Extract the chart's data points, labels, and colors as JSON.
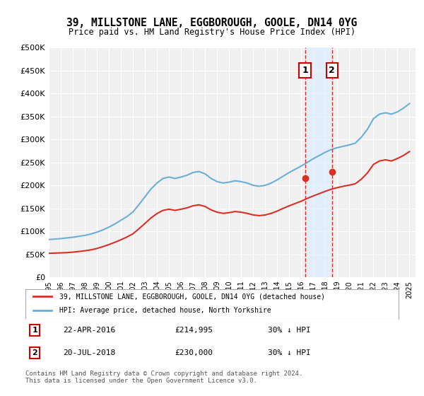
{
  "title": "39, MILLSTONE LANE, EGGBOROUGH, GOOLE, DN14 0YG",
  "subtitle": "Price paid vs. HM Land Registry's House Price Index (HPI)",
  "xlabel": "",
  "ylabel": "",
  "ylim": [
    0,
    500000
  ],
  "yticks": [
    0,
    50000,
    100000,
    150000,
    200000,
    250000,
    300000,
    350000,
    400000,
    450000,
    500000
  ],
  "ytick_labels": [
    "£0",
    "£50K",
    "£100K",
    "£150K",
    "£200K",
    "£250K",
    "£300K",
    "£350K",
    "£400K",
    "£450K",
    "£500K"
  ],
  "xlim_start": 1995.0,
  "xlim_end": 2025.5,
  "xticks": [
    1995,
    1996,
    1997,
    1998,
    1999,
    2000,
    2001,
    2002,
    2003,
    2004,
    2005,
    2006,
    2007,
    2008,
    2009,
    2010,
    2011,
    2012,
    2013,
    2014,
    2015,
    2016,
    2017,
    2018,
    2019,
    2020,
    2021,
    2022,
    2023,
    2024,
    2025
  ],
  "background_color": "#ffffff",
  "plot_bg_color": "#f0f0f0",
  "grid_color": "#ffffff",
  "hpi_color": "#6baed6",
  "price_color": "#d73027",
  "marker_line_color": "#d73027",
  "marker_fill_color": "#d73027",
  "vline_color": "#d73027",
  "vband_color": "#ddeeff",
  "annotation1": {
    "index": 1,
    "date": "22-APR-2016",
    "price": "£214,995",
    "pct": "30% ↓ HPI",
    "year": 2016.31
  },
  "annotation2": {
    "index": 2,
    "date": "20-JUL-2018",
    "price": "£230,000",
    "pct": "30% ↓ HPI",
    "year": 2018.55
  },
  "legend_label1": "39, MILLSTONE LANE, EGGBOROUGH, GOOLE, DN14 0YG (detached house)",
  "legend_label2": "HPI: Average price, detached house, North Yorkshire",
  "footnote": "Contains HM Land Registry data © Crown copyright and database right 2024.\nThis data is licensed under the Open Government Licence v3.0.",
  "hpi_x": [
    1995,
    1995.5,
    1996,
    1996.5,
    1997,
    1997.5,
    1998,
    1998.5,
    1999,
    1999.5,
    2000,
    2000.5,
    2001,
    2001.5,
    2002,
    2002.5,
    2003,
    2003.5,
    2004,
    2004.5,
    2005,
    2005.5,
    2006,
    2006.5,
    2007,
    2007.5,
    2008,
    2008.5,
    2009,
    2009.5,
    2010,
    2010.5,
    2011,
    2011.5,
    2012,
    2012.5,
    2013,
    2013.5,
    2014,
    2014.5,
    2015,
    2015.5,
    2016,
    2016.5,
    2017,
    2017.5,
    2018,
    2018.5,
    2019,
    2019.5,
    2020,
    2020.5,
    2021,
    2021.5,
    2022,
    2022.5,
    2023,
    2023.5,
    2024,
    2024.5,
    2025
  ],
  "hpi_y": [
    82000,
    83000,
    84000,
    85500,
    87000,
    89000,
    91000,
    94000,
    98000,
    103000,
    109000,
    116000,
    124000,
    132000,
    142000,
    158000,
    175000,
    192000,
    205000,
    215000,
    218000,
    215000,
    218000,
    222000,
    228000,
    230000,
    225000,
    215000,
    208000,
    205000,
    207000,
    210000,
    208000,
    205000,
    200000,
    198000,
    200000,
    205000,
    212000,
    220000,
    228000,
    235000,
    242000,
    250000,
    258000,
    265000,
    272000,
    278000,
    282000,
    285000,
    288000,
    292000,
    305000,
    322000,
    345000,
    355000,
    358000,
    355000,
    360000,
    368000,
    378000
  ],
  "price_x": [
    1995,
    1995.5,
    1996,
    1996.5,
    1997,
    1997.5,
    1998,
    1998.5,
    1999,
    1999.5,
    2000,
    2000.5,
    2001,
    2001.5,
    2002,
    2002.5,
    2003,
    2003.5,
    2004,
    2004.5,
    2005,
    2005.5,
    2006,
    2006.5,
    2007,
    2007.5,
    2008,
    2008.5,
    2009,
    2009.5,
    2010,
    2010.5,
    2011,
    2011.5,
    2012,
    2012.5,
    2013,
    2013.5,
    2014,
    2014.5,
    2015,
    2015.5,
    2016,
    2016.5,
    2017,
    2017.5,
    2018,
    2018.5,
    2019,
    2019.5,
    2020,
    2020.5,
    2021,
    2021.5,
    2022,
    2022.5,
    2023,
    2023.5,
    2024,
    2024.5,
    2025
  ],
  "price_y": [
    52000,
    52500,
    53000,
    53500,
    54500,
    56000,
    57500,
    59500,
    62500,
    66500,
    71000,
    76000,
    81500,
    87500,
    94500,
    105500,
    117000,
    129000,
    138500,
    145500,
    148000,
    145500,
    148000,
    151000,
    155500,
    157500,
    154000,
    146500,
    141500,
    139000,
    140500,
    143000,
    141500,
    139000,
    135500,
    134000,
    135500,
    139000,
    144000,
    150000,
    155500,
    160500,
    165500,
    171500,
    177000,
    182000,
    187000,
    191500,
    195000,
    198000,
    200500,
    203500,
    213500,
    227000,
    245500,
    253000,
    255500,
    253000,
    258500,
    265000,
    273500
  ],
  "sale_points": [
    {
      "year": 2016.31,
      "price": 214995
    },
    {
      "year": 2018.55,
      "price": 230000
    }
  ]
}
